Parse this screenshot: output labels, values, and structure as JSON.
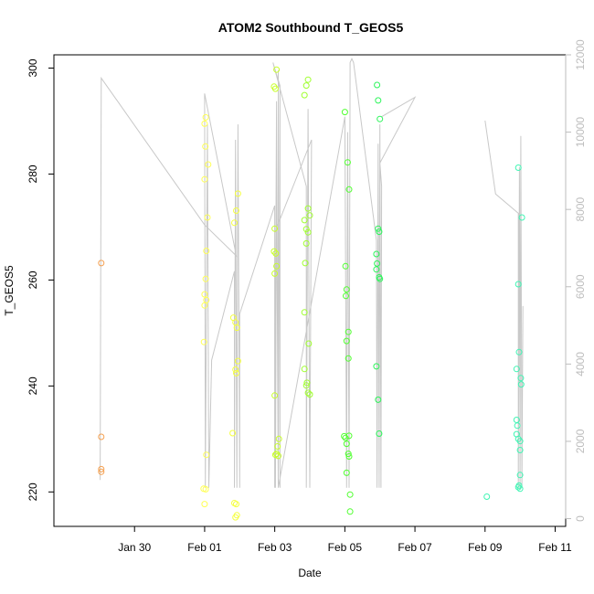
{
  "chart_data": {
    "type": "scatter",
    "title": "ATOM2 Southbound T_GEOS5",
    "xlabel": "Date",
    "ylabel": "T_GEOS5",
    "x_ticks": [
      "Jan 30",
      "Feb 01",
      "Feb 03",
      "Feb 05",
      "Feb 07",
      "Feb 09",
      "Feb 11"
    ],
    "y_ticks": [
      220,
      240,
      260,
      280,
      300
    ],
    "y2_ticks": [
      0,
      2000,
      4000,
      6000,
      8000,
      10000,
      12000
    ],
    "xlim": [
      -2.3,
      12.3
    ],
    "ylim": [
      213.5,
      302.5
    ],
    "y2lim": [
      -200,
      12000
    ],
    "x_units": "days since Jan 30",
    "points": [
      {
        "x": -0.95,
        "y": 263.2,
        "c": "#f5a050"
      },
      {
        "x": -0.95,
        "y": 230.4,
        "c": "#f5a050"
      },
      {
        "x": -0.95,
        "y": 224.3,
        "c": "#f5a050"
      },
      {
        "x": -0.95,
        "y": 223.8,
        "c": "#f5a050"
      },
      {
        "x": 2.03,
        "y": 290.7,
        "c": "#ffff55"
      },
      {
        "x": 2.0,
        "y": 289.5,
        "c": "#ffff55"
      },
      {
        "x": 2.02,
        "y": 285.2,
        "c": "#ffff55"
      },
      {
        "x": 2.1,
        "y": 281.8,
        "c": "#ffff55"
      },
      {
        "x": 2.0,
        "y": 279.0,
        "c": "#ffff55"
      },
      {
        "x": 2.08,
        "y": 271.8,
        "c": "#ffff55"
      },
      {
        "x": 2.05,
        "y": 265.5,
        "c": "#ffff55"
      },
      {
        "x": 2.03,
        "y": 260.2,
        "c": "#ffff55"
      },
      {
        "x": 2.0,
        "y": 257.3,
        "c": "#ffff55"
      },
      {
        "x": 2.05,
        "y": 256.2,
        "c": "#ffff55"
      },
      {
        "x": 2.0,
        "y": 255.2,
        "c": "#ffff55"
      },
      {
        "x": 1.98,
        "y": 248.3,
        "c": "#ffff55"
      },
      {
        "x": 2.05,
        "y": 227.0,
        "c": "#ffff55"
      },
      {
        "x": 1.97,
        "y": 220.6,
        "c": "#ffff55"
      },
      {
        "x": 2.03,
        "y": 220.5,
        "c": "#ffff55"
      },
      {
        "x": 2.0,
        "y": 217.7,
        "c": "#ffff55"
      },
      {
        "x": 2.95,
        "y": 276.3,
        "c": "#f5ff40"
      },
      {
        "x": 2.9,
        "y": 273.1,
        "c": "#f5ff40"
      },
      {
        "x": 2.85,
        "y": 270.8,
        "c": "#f5ff40"
      },
      {
        "x": 2.82,
        "y": 252.9,
        "c": "#f5ff40"
      },
      {
        "x": 2.88,
        "y": 252.0,
        "c": "#f5ff40"
      },
      {
        "x": 2.92,
        "y": 251.0,
        "c": "#f5ff40"
      },
      {
        "x": 2.95,
        "y": 244.7,
        "c": "#f5ff40"
      },
      {
        "x": 2.88,
        "y": 243.1,
        "c": "#f5ff40"
      },
      {
        "x": 2.9,
        "y": 242.4,
        "c": "#f5ff40"
      },
      {
        "x": 2.8,
        "y": 231.1,
        "c": "#f5ff40"
      },
      {
        "x": 2.85,
        "y": 217.9,
        "c": "#f5ff40"
      },
      {
        "x": 2.9,
        "y": 217.7,
        "c": "#f5ff40"
      },
      {
        "x": 2.92,
        "y": 215.6,
        "c": "#f5ff40"
      },
      {
        "x": 2.88,
        "y": 215.2,
        "c": "#f5ff40"
      },
      {
        "x": 4.05,
        "y": 299.7,
        "c": "#c8ff2a"
      },
      {
        "x": 3.98,
        "y": 296.5,
        "c": "#c8ff2a"
      },
      {
        "x": 4.02,
        "y": 296.1,
        "c": "#c8ff2a"
      },
      {
        "x": 4.0,
        "y": 269.7,
        "c": "#c8ff2a"
      },
      {
        "x": 3.98,
        "y": 265.4,
        "c": "#c8ff2a"
      },
      {
        "x": 4.03,
        "y": 265.0,
        "c": "#c8ff2a"
      },
      {
        "x": 4.05,
        "y": 262.6,
        "c": "#c8ff2a"
      },
      {
        "x": 4.0,
        "y": 261.2,
        "c": "#c8ff2a"
      },
      {
        "x": 4.0,
        "y": 238.2,
        "c": "#c8ff2a"
      },
      {
        "x": 4.12,
        "y": 230.0,
        "c": "#c8ff2a"
      },
      {
        "x": 4.08,
        "y": 228.6,
        "c": "#c8ff2a"
      },
      {
        "x": 4.05,
        "y": 227.2,
        "c": "#c8ff2a"
      },
      {
        "x": 4.1,
        "y": 226.8,
        "c": "#c8ff2a"
      },
      {
        "x": 4.02,
        "y": 227.0,
        "c": "#c8ff2a"
      },
      {
        "x": 4.95,
        "y": 297.8,
        "c": "#a0ff30"
      },
      {
        "x": 4.9,
        "y": 296.7,
        "c": "#a0ff30"
      },
      {
        "x": 4.85,
        "y": 294.9,
        "c": "#a0ff30"
      },
      {
        "x": 4.95,
        "y": 273.5,
        "c": "#a0ff30"
      },
      {
        "x": 5.0,
        "y": 272.2,
        "c": "#a0ff30"
      },
      {
        "x": 4.85,
        "y": 271.3,
        "c": "#a0ff30"
      },
      {
        "x": 4.9,
        "y": 269.6,
        "c": "#a0ff30"
      },
      {
        "x": 4.95,
        "y": 269.0,
        "c": "#a0ff30"
      },
      {
        "x": 4.9,
        "y": 266.9,
        "c": "#a0ff30"
      },
      {
        "x": 4.87,
        "y": 263.2,
        "c": "#a0ff30"
      },
      {
        "x": 4.85,
        "y": 253.9,
        "c": "#a0ff30"
      },
      {
        "x": 4.97,
        "y": 248.0,
        "c": "#a0ff30"
      },
      {
        "x": 4.85,
        "y": 243.2,
        "c": "#a0ff30"
      },
      {
        "x": 4.92,
        "y": 240.6,
        "c": "#a0ff30"
      },
      {
        "x": 4.9,
        "y": 240.1,
        "c": "#a0ff30"
      },
      {
        "x": 4.95,
        "y": 238.7,
        "c": "#a0ff30"
      },
      {
        "x": 5.0,
        "y": 238.4,
        "c": "#a0ff30"
      },
      {
        "x": 6.0,
        "y": 291.7,
        "c": "#50ff30"
      },
      {
        "x": 6.08,
        "y": 282.2,
        "c": "#50ff30"
      },
      {
        "x": 6.12,
        "y": 277.1,
        "c": "#50ff30"
      },
      {
        "x": 6.02,
        "y": 262.6,
        "c": "#50ff30"
      },
      {
        "x": 6.05,
        "y": 258.2,
        "c": "#50ff30"
      },
      {
        "x": 6.03,
        "y": 257.0,
        "c": "#50ff30"
      },
      {
        "x": 6.1,
        "y": 250.2,
        "c": "#50ff30"
      },
      {
        "x": 6.05,
        "y": 248.5,
        "c": "#50ff30"
      },
      {
        "x": 6.1,
        "y": 245.2,
        "c": "#50ff30"
      },
      {
        "x": 5.98,
        "y": 230.5,
        "c": "#50ff30"
      },
      {
        "x": 6.02,
        "y": 230.2,
        "c": "#50ff30"
      },
      {
        "x": 6.05,
        "y": 229.1,
        "c": "#50ff30"
      },
      {
        "x": 6.12,
        "y": 230.6,
        "c": "#50ff30"
      },
      {
        "x": 6.1,
        "y": 227.2,
        "c": "#50ff30"
      },
      {
        "x": 6.12,
        "y": 226.7,
        "c": "#50ff30"
      },
      {
        "x": 6.05,
        "y": 223.6,
        "c": "#50ff30"
      },
      {
        "x": 6.15,
        "y": 219.5,
        "c": "#50ff30"
      },
      {
        "x": 6.15,
        "y": 216.3,
        "c": "#50ff30"
      },
      {
        "x": 6.92,
        "y": 296.8,
        "c": "#2cf55a"
      },
      {
        "x": 6.95,
        "y": 293.9,
        "c": "#2cf55a"
      },
      {
        "x": 7.0,
        "y": 290.4,
        "c": "#2cf55a"
      },
      {
        "x": 6.95,
        "y": 269.7,
        "c": "#2cf55a"
      },
      {
        "x": 6.98,
        "y": 269.1,
        "c": "#2cf55a"
      },
      {
        "x": 6.9,
        "y": 264.9,
        "c": "#2cf55a"
      },
      {
        "x": 6.92,
        "y": 263.1,
        "c": "#2cf55a"
      },
      {
        "x": 6.9,
        "y": 262.0,
        "c": "#2cf55a"
      },
      {
        "x": 6.98,
        "y": 260.5,
        "c": "#2cf55a"
      },
      {
        "x": 7.0,
        "y": 260.2,
        "c": "#2cf55a"
      },
      {
        "x": 6.9,
        "y": 243.7,
        "c": "#2cf55a"
      },
      {
        "x": 6.95,
        "y": 237.4,
        "c": "#2cf55a"
      },
      {
        "x": 6.98,
        "y": 231.0,
        "c": "#2cf55a"
      },
      {
        "x": 11.03,
        "y": 240.3,
        "c": "#40f5b4"
      },
      {
        "x": 11.0,
        "y": 223.2,
        "c": "#40f5b4"
      },
      {
        "x": 10.05,
        "y": 219.1,
        "c": "#40f5b4"
      },
      {
        "x": 10.95,
        "y": 281.2,
        "c": "#40f5b4"
      },
      {
        "x": 11.05,
        "y": 271.8,
        "c": "#40f5b4"
      },
      {
        "x": 10.95,
        "y": 259.2,
        "c": "#40f5b4"
      },
      {
        "x": 10.97,
        "y": 246.4,
        "c": "#40f5b4"
      },
      {
        "x": 10.9,
        "y": 243.2,
        "c": "#40f5b4"
      },
      {
        "x": 11.02,
        "y": 241.5,
        "c": "#40f5b4"
      },
      {
        "x": 10.9,
        "y": 233.6,
        "c": "#40f5b4"
      },
      {
        "x": 10.92,
        "y": 232.5,
        "c": "#40f5b4"
      },
      {
        "x": 10.9,
        "y": 230.9,
        "c": "#40f5b4"
      },
      {
        "x": 10.95,
        "y": 230.0,
        "c": "#40f5b4"
      },
      {
        "x": 11.0,
        "y": 229.6,
        "c": "#40f5b4"
      },
      {
        "x": 11.0,
        "y": 227.9,
        "c": "#40f5b4"
      },
      {
        "x": 10.97,
        "y": 221.2,
        "c": "#40f5b4"
      },
      {
        "x": 10.95,
        "y": 220.9,
        "c": "#40f5b4"
      },
      {
        "x": 11.0,
        "y": 220.6,
        "c": "#40f5b4"
      }
    ],
    "altitude_line": [
      [
        -0.98,
        1000
      ],
      [
        -0.95,
        11400
      ],
      [
        2.0,
        7600
      ],
      [
        2.9,
        6800
      ],
      [
        2.0,
        11000
      ],
      [
        2.02,
        800
      ],
      [
        2.08,
        10200
      ],
      [
        2.12,
        800
      ],
      [
        2.2,
        4100
      ],
      [
        2.85,
        6400
      ],
      [
        2.85,
        800
      ],
      [
        2.88,
        9800
      ],
      [
        2.92,
        800
      ],
      [
        2.95,
        10200
      ],
      [
        3.0,
        800
      ],
      [
        3.0,
        5300
      ],
      [
        4.0,
        8100
      ],
      [
        4.0,
        800
      ],
      [
        4.05,
        10800
      ],
      [
        4.1,
        800
      ],
      [
        4.1,
        11600
      ],
      [
        4.15,
        800
      ],
      [
        4.15,
        11200
      ],
      [
        3.95,
        11800
      ],
      [
        4.9,
        8600
      ],
      [
        4.9,
        800
      ],
      [
        4.95,
        10600
      ],
      [
        5.0,
        800
      ],
      [
        5.05,
        9800
      ],
      [
        4.0,
        7400
      ],
      [
        4.02,
        800
      ],
      [
        4.05,
        9100
      ],
      [
        4.1,
        800
      ],
      [
        6.0,
        10400
      ],
      [
        6.05,
        800
      ],
      [
        6.08,
        10000
      ],
      [
        6.12,
        800
      ],
      [
        6.15,
        11800
      ],
      [
        6.2,
        11900
      ],
      [
        6.25,
        11800
      ],
      [
        6.9,
        7200
      ],
      [
        6.92,
        800
      ],
      [
        6.95,
        9700
      ],
      [
        6.98,
        800
      ],
      [
        7.0,
        10200
      ],
      [
        7.03,
        800
      ],
      [
        7.05,
        8600
      ],
      [
        7.0,
        9200
      ],
      [
        8.0,
        10900
      ],
      [
        7.05,
        10400
      ]
    ],
    "altitude_line_2": [
      [
        10.0,
        10300
      ],
      [
        10.3,
        8400
      ],
      [
        10.95,
        7900
      ],
      [
        10.95,
        800
      ],
      [
        10.98,
        9100
      ],
      [
        11.0,
        800
      ],
      [
        11.02,
        9900
      ],
      [
        11.05,
        800
      ],
      [
        11.08,
        5500
      ]
    ],
    "grid": false
  }
}
